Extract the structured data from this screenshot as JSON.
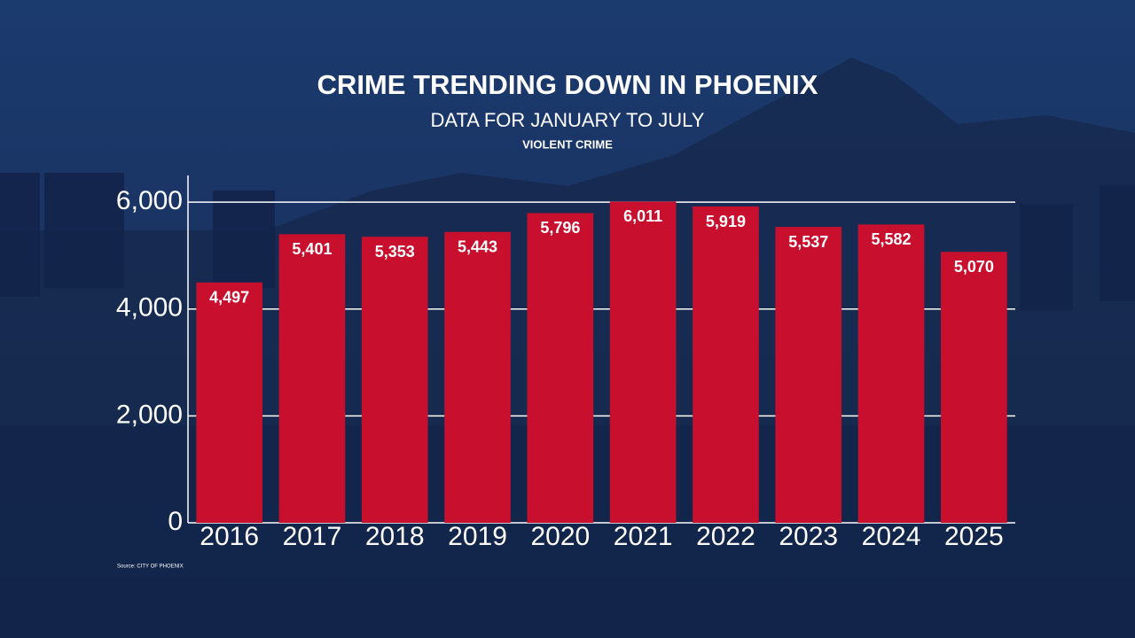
{
  "chart_data": {
    "type": "bar",
    "title": "CRIME TRENDING DOWN IN PHOENIX",
    "subtitle": "DATA FOR JANUARY TO JULY",
    "series_label": "VIOLENT CRIME",
    "source": "Source: CITY OF PHOENIX",
    "categories": [
      "2016",
      "2017",
      "2018",
      "2019",
      "2020",
      "2021",
      "2022",
      "2023",
      "2024",
      "2025"
    ],
    "values": [
      4497,
      5401,
      5353,
      5443,
      5796,
      6011,
      5919,
      5537,
      5582,
      5070
    ],
    "value_labels": [
      "4,497",
      "5,401",
      "5,353",
      "5,443",
      "5,796",
      "6,011",
      "5,919",
      "5,537",
      "5,582",
      "5,070"
    ],
    "color": "#c8102e",
    "ylim": [
      0,
      6500
    ],
    "yticks": [
      0,
      {
        "value": 2000,
        "label": "2,000"
      },
      {
        "value": 4000,
        "label": "4,000"
      },
      {
        "value": 6000,
        "label": "6,000"
      }
    ],
    "grid": true
  }
}
